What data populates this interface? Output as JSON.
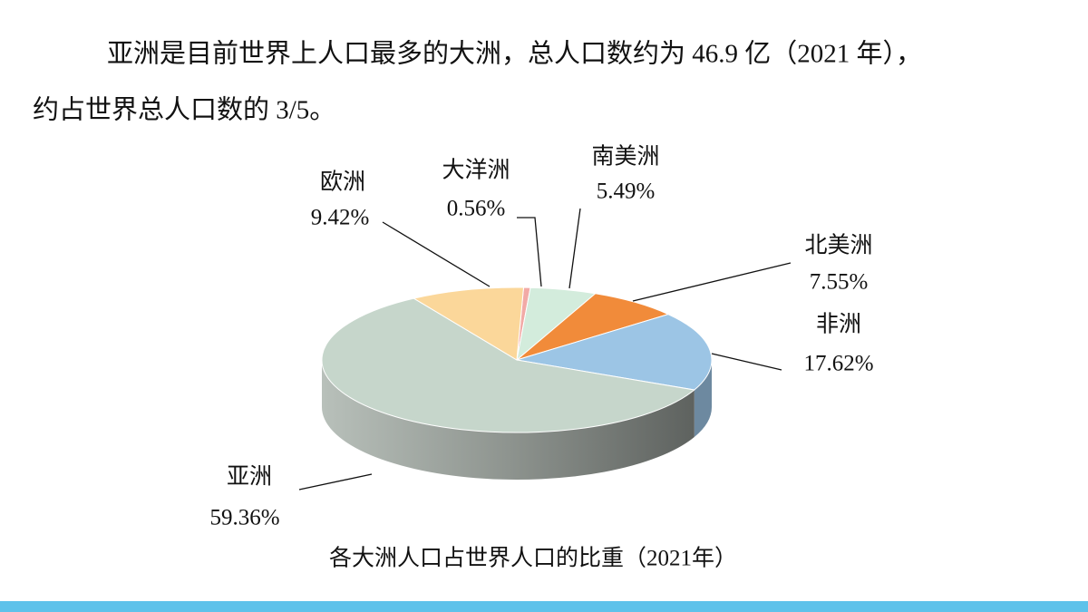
{
  "paragraph": {
    "lines": [
      "亚洲是目前世界上人口最多的大洲，总人口数约为 46.9 亿（2021 年），",
      "约占世界总人口数的 3/5。"
    ]
  },
  "chart_data": {
    "type": "pie",
    "title": "各大洲人口占世界人口的比重（2021年）",
    "categories": [
      "大洋洲",
      "南美洲",
      "北美洲",
      "非洲",
      "亚洲",
      "欧洲"
    ],
    "values": [
      0.56,
      5.49,
      7.55,
      17.62,
      59.36,
      9.42
    ],
    "value_labels": [
      "0.56%",
      "5.49%",
      "7.55%",
      "17.62%",
      "59.36%",
      "9.42%"
    ],
    "colors": [
      "#f2aaa6",
      "#d3ecdc",
      "#f18b3a",
      "#9cc5e5",
      "#c6d6cb",
      "#fbd79a"
    ]
  }
}
